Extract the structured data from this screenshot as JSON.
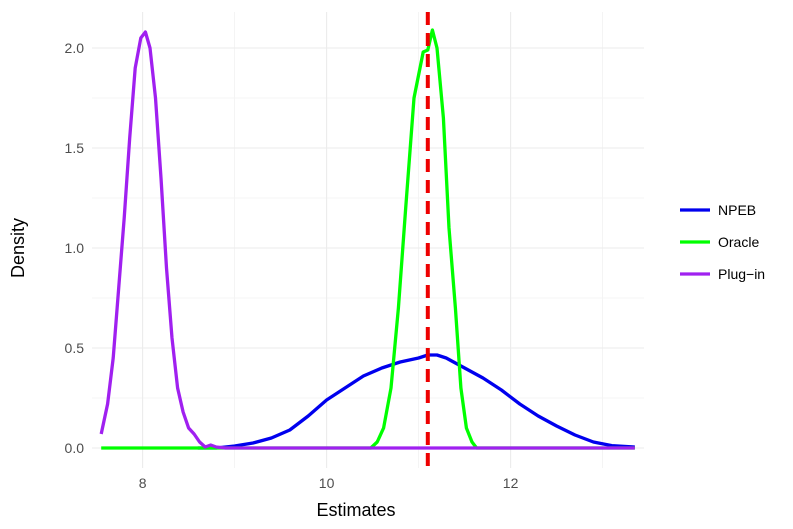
{
  "chart_data": {
    "type": "line",
    "title": "",
    "xlabel": "Estimates",
    "ylabel": "Density",
    "xlim": [
      7.45,
      13.45
    ],
    "ylim": [
      -0.1,
      2.18
    ],
    "x_ticks": [
      {
        "value": 8,
        "label": "8"
      },
      {
        "value": 10,
        "label": "10"
      },
      {
        "value": 12,
        "label": "12"
      }
    ],
    "y_ticks": [
      {
        "value": 0.0,
        "label": "0.0"
      },
      {
        "value": 0.5,
        "label": "0.5"
      },
      {
        "value": 1.0,
        "label": "1.0"
      },
      {
        "value": 1.5,
        "label": "1.5"
      },
      {
        "value": 2.0,
        "label": "2.0"
      }
    ],
    "grid": true,
    "legend_position": "right",
    "reference_line": {
      "x": 11.1,
      "color": "#ee0000",
      "style": "dashed"
    },
    "series": [
      {
        "name": "NPEB",
        "color": "#0000ee",
        "points": [
          [
            8.6,
            0.0
          ],
          [
            8.8,
            0.0
          ],
          [
            9.0,
            0.01
          ],
          [
            9.2,
            0.025
          ],
          [
            9.4,
            0.05
          ],
          [
            9.6,
            0.09
          ],
          [
            9.8,
            0.16
          ],
          [
            10.0,
            0.24
          ],
          [
            10.2,
            0.3
          ],
          [
            10.4,
            0.36
          ],
          [
            10.6,
            0.4
          ],
          [
            10.8,
            0.43
          ],
          [
            11.0,
            0.45
          ],
          [
            11.1,
            0.465
          ],
          [
            11.2,
            0.465
          ],
          [
            11.3,
            0.45
          ],
          [
            11.5,
            0.4
          ],
          [
            11.7,
            0.35
          ],
          [
            11.9,
            0.29
          ],
          [
            12.1,
            0.22
          ],
          [
            12.3,
            0.16
          ],
          [
            12.5,
            0.11
          ],
          [
            12.7,
            0.065
          ],
          [
            12.9,
            0.03
          ],
          [
            13.1,
            0.012
          ],
          [
            13.35,
            0.005
          ]
        ]
      },
      {
        "name": "Oracle",
        "color": "#00ff00",
        "points": [
          [
            7.55,
            0.0
          ],
          [
            8.0,
            0.0
          ],
          [
            9.0,
            0.0
          ],
          [
            10.0,
            0.0
          ],
          [
            10.48,
            0.0
          ],
          [
            10.55,
            0.03
          ],
          [
            10.62,
            0.1
          ],
          [
            10.7,
            0.3
          ],
          [
            10.78,
            0.7
          ],
          [
            10.86,
            1.2
          ],
          [
            10.95,
            1.75
          ],
          [
            11.05,
            1.98
          ],
          [
            11.1,
            1.99
          ],
          [
            11.15,
            2.09
          ],
          [
            11.2,
            2.0
          ],
          [
            11.27,
            1.65
          ],
          [
            11.33,
            1.1
          ],
          [
            11.4,
            0.7
          ],
          [
            11.46,
            0.3
          ],
          [
            11.52,
            0.1
          ],
          [
            11.58,
            0.03
          ],
          [
            11.63,
            0.0
          ],
          [
            12.5,
            0.0
          ],
          [
            13.35,
            0.0
          ]
        ]
      },
      {
        "name": "Plug−in",
        "color": "#a020f0",
        "points": [
          [
            7.55,
            0.07
          ],
          [
            7.62,
            0.22
          ],
          [
            7.68,
            0.45
          ],
          [
            7.74,
            0.8
          ],
          [
            7.8,
            1.15
          ],
          [
            7.86,
            1.55
          ],
          [
            7.92,
            1.9
          ],
          [
            7.98,
            2.05
          ],
          [
            8.03,
            2.08
          ],
          [
            8.08,
            2.0
          ],
          [
            8.14,
            1.75
          ],
          [
            8.2,
            1.35
          ],
          [
            8.26,
            0.9
          ],
          [
            8.32,
            0.55
          ],
          [
            8.38,
            0.3
          ],
          [
            8.44,
            0.18
          ],
          [
            8.5,
            0.1
          ],
          [
            8.56,
            0.07
          ],
          [
            8.62,
            0.03
          ],
          [
            8.68,
            0.005
          ],
          [
            8.74,
            0.015
          ],
          [
            8.8,
            0.005
          ],
          [
            8.9,
            0.0
          ],
          [
            9.5,
            0.0
          ],
          [
            10.5,
            0.0
          ],
          [
            11.5,
            0.0
          ],
          [
            12.5,
            0.0
          ],
          [
            13.35,
            0.0
          ]
        ]
      }
    ]
  }
}
